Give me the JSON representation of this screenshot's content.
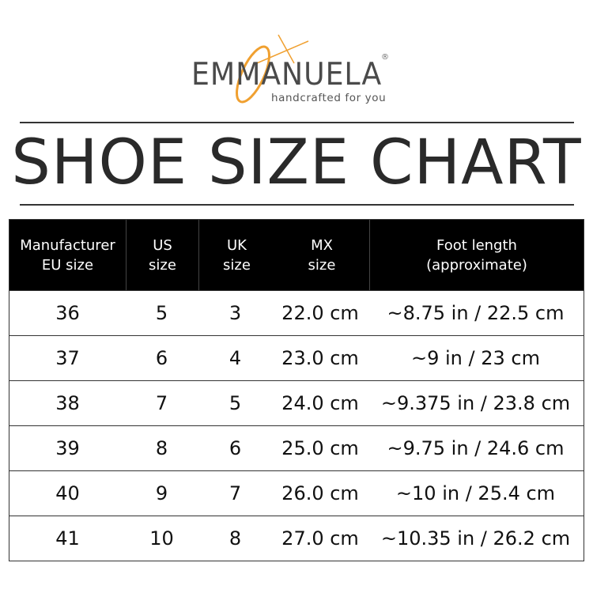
{
  "logo": {
    "brand": "EMMANUELA",
    "registered": "®",
    "tagline": "handcrafted for you",
    "accent_color": "#f0a030"
  },
  "title": "SHOE SIZE CHART",
  "table": {
    "headers": [
      [
        "Manufacturer",
        "EU size"
      ],
      [
        "US",
        "size"
      ],
      [
        "UK",
        "size"
      ],
      [
        "MX",
        "size"
      ],
      [
        "Foot length",
        "(approximate)"
      ]
    ],
    "rows": [
      [
        "36",
        "5",
        "3",
        "22.0 cm",
        "~8.75 in / 22.5 cm"
      ],
      [
        "37",
        "6",
        "4",
        "23.0 cm",
        "~9 in / 23 cm"
      ],
      [
        "38",
        "7",
        "5",
        "24.0 cm",
        "~9.375 in / 23.8 cm"
      ],
      [
        "39",
        "8",
        "6",
        "25.0 cm",
        "~9.75 in / 24.6 cm"
      ],
      [
        "40",
        "9",
        "7",
        "26.0 cm",
        "~10 in / 25.4 cm"
      ],
      [
        "41",
        "10",
        "8",
        "27.0 cm",
        "~10.35 in / 26.2 cm"
      ]
    ]
  }
}
